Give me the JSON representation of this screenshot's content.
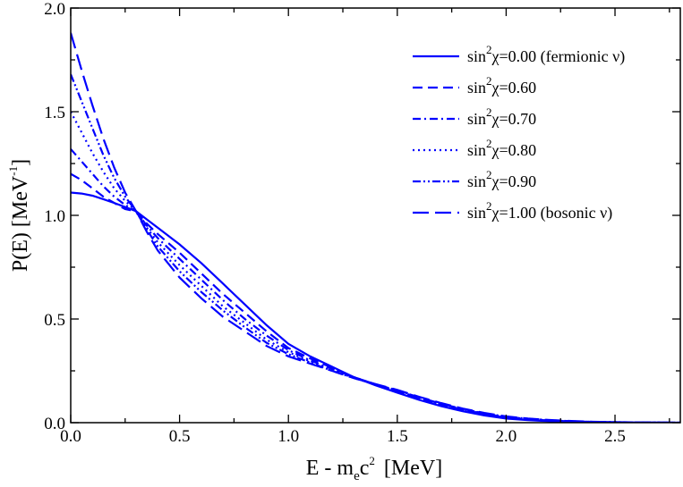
{
  "chart_data": {
    "type": "line",
    "title": "",
    "xlabel": "E - m_e c^2  [MeV]",
    "ylabel": "P(E) [MeV^-1]",
    "xlabel_parts": {
      "main": "E - m",
      "sub": "e",
      "tail": "c",
      "sup": "2",
      "unit": "[MeV]"
    },
    "ylabel_parts": {
      "main": "P(E) [MeV",
      "sup": "-1",
      "end": "]"
    },
    "xlim": [
      0.0,
      2.8
    ],
    "ylim": [
      0.0,
      2.0
    ],
    "xticks": [
      "0.0",
      "0.5",
      "1.0",
      "1.5",
      "2.0",
      "2.5"
    ],
    "xtick_values": [
      0.0,
      0.5,
      1.0,
      1.5,
      2.0,
      2.5
    ],
    "yticks": [
      "0.0",
      "0.5",
      "1.0",
      "1.5",
      "2.0"
    ],
    "ytick_values": [
      0.0,
      0.5,
      1.0,
      1.5,
      2.0
    ],
    "grid": false,
    "legend_position": "top-right",
    "line_color": "#0000ff",
    "x": [
      0.0,
      0.05,
      0.1,
      0.15,
      0.2,
      0.25,
      0.3,
      0.35,
      0.4,
      0.5,
      0.6,
      0.7,
      0.8,
      0.9,
      1.0,
      1.1,
      1.2,
      1.3,
      1.4,
      1.5,
      1.6,
      1.7,
      1.8,
      1.9,
      2.0,
      2.1,
      2.2,
      2.3,
      2.4,
      2.5,
      2.6,
      2.7,
      2.8
    ],
    "series": [
      {
        "name": "sin2chi=0.00 (fermionic nu)",
        "legend": {
          "prefix": "sin",
          "sup": "2",
          "suffix": "χ=0.00 (fermionic ν)"
        },
        "style": "solid",
        "values": [
          1.11,
          1.105,
          1.095,
          1.078,
          1.06,
          1.04,
          1.02,
          0.98,
          0.94,
          0.86,
          0.77,
          0.67,
          0.57,
          0.47,
          0.38,
          0.32,
          0.27,
          0.22,
          0.18,
          0.145,
          0.11,
          0.08,
          0.055,
          0.035,
          0.02,
          0.012,
          0.007,
          0.004,
          0.002,
          0.001,
          0.0005,
          0.0002,
          0.0
        ]
      },
      {
        "name": "sin2chi=0.60",
        "legend": {
          "prefix": "sin",
          "sup": "2",
          "suffix": "χ=0.60"
        },
        "style": "dashed",
        "values": [
          1.2,
          1.17,
          1.13,
          1.09,
          1.06,
          1.03,
          1.02,
          0.96,
          0.91,
          0.82,
          0.72,
          0.62,
          0.53,
          0.44,
          0.36,
          0.31,
          0.265,
          0.22,
          0.185,
          0.15,
          0.115,
          0.085,
          0.06,
          0.04,
          0.025,
          0.015,
          0.009,
          0.005,
          0.003,
          0.0015,
          0.0008,
          0.0003,
          0.0
        ]
      },
      {
        "name": "sin2chi=0.70",
        "legend": {
          "prefix": "sin",
          "sup": "2",
          "suffix": "χ=0.70"
        },
        "style": "dash-dot",
        "values": [
          1.32,
          1.26,
          1.2,
          1.14,
          1.09,
          1.05,
          1.02,
          0.95,
          0.89,
          0.79,
          0.69,
          0.59,
          0.5,
          0.42,
          0.35,
          0.3,
          0.26,
          0.22,
          0.185,
          0.152,
          0.118,
          0.088,
          0.062,
          0.042,
          0.027,
          0.017,
          0.01,
          0.006,
          0.0035,
          0.002,
          0.001,
          0.0004,
          0.0
        ]
      },
      {
        "name": "sin2chi=0.80",
        "legend": {
          "prefix": "sin",
          "sup": "2",
          "suffix": "χ=0.80"
        },
        "style": "dotted",
        "values": [
          1.5,
          1.4,
          1.3,
          1.21,
          1.13,
          1.07,
          1.02,
          0.94,
          0.87,
          0.76,
          0.66,
          0.56,
          0.48,
          0.4,
          0.34,
          0.295,
          0.255,
          0.215,
          0.185,
          0.154,
          0.12,
          0.09,
          0.064,
          0.044,
          0.028,
          0.018,
          0.011,
          0.0065,
          0.0038,
          0.0022,
          0.0011,
          0.0005,
          0.0
        ]
      },
      {
        "name": "sin2chi=0.90",
        "legend": {
          "prefix": "sin",
          "sup": "2",
          "suffix": "χ=0.90"
        },
        "style": "dash-dot-dot",
        "values": [
          1.68,
          1.55,
          1.42,
          1.29,
          1.18,
          1.09,
          1.02,
          0.93,
          0.85,
          0.73,
          0.63,
          0.54,
          0.46,
          0.385,
          0.33,
          0.29,
          0.25,
          0.215,
          0.185,
          0.156,
          0.122,
          0.092,
          0.066,
          0.045,
          0.029,
          0.019,
          0.012,
          0.007,
          0.004,
          0.0024,
          0.0012,
          0.0005,
          0.0
        ]
      },
      {
        "name": "sin2chi=1.00 (bosonic nu)",
        "legend": {
          "prefix": "sin",
          "sup": "2",
          "suffix": "χ=1.00 (bosonic ν)"
        },
        "style": "long-dash",
        "values": [
          1.88,
          1.7,
          1.53,
          1.37,
          1.23,
          1.11,
          1.02,
          0.92,
          0.83,
          0.7,
          0.6,
          0.51,
          0.44,
          0.37,
          0.32,
          0.285,
          0.25,
          0.215,
          0.186,
          0.158,
          0.125,
          0.095,
          0.068,
          0.047,
          0.03,
          0.02,
          0.013,
          0.008,
          0.0045,
          0.0026,
          0.0013,
          0.0006,
          0.0
        ]
      }
    ]
  }
}
